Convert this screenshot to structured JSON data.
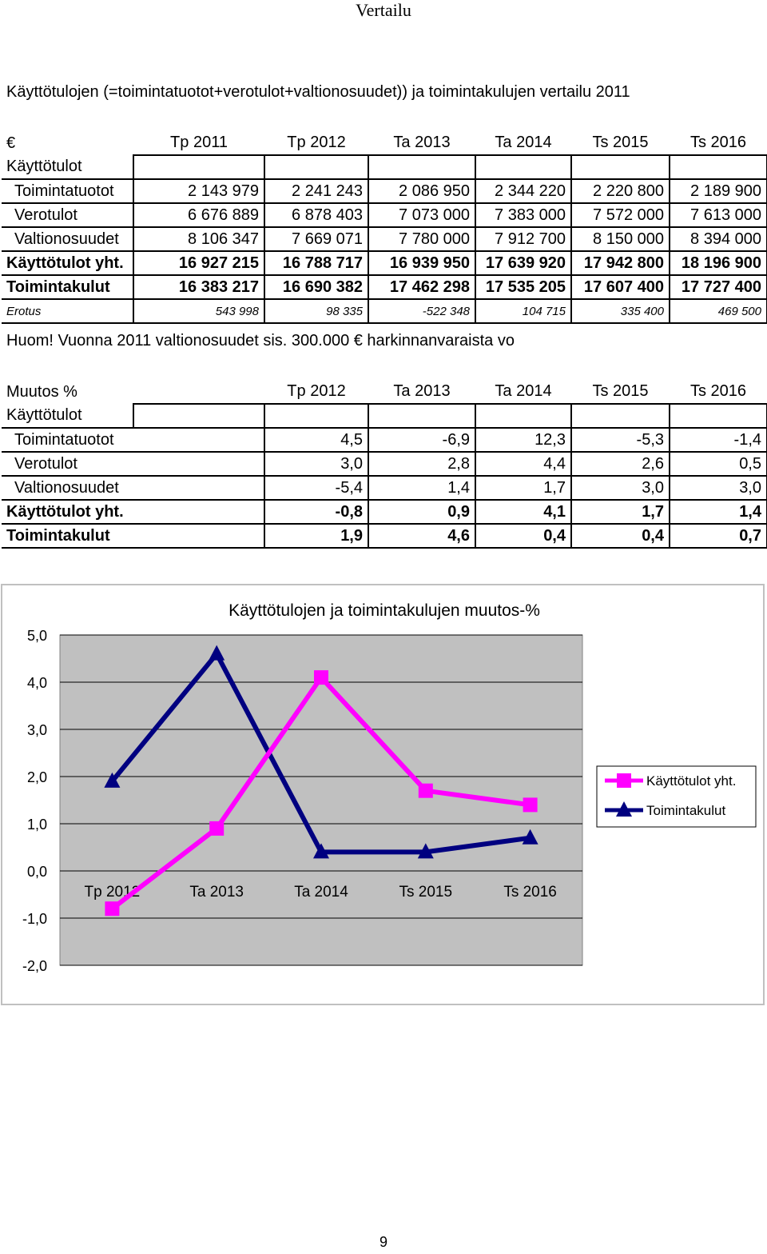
{
  "page_header": "Vertailu",
  "title": "Käyttötulojen (=toimintatuotot+verotulot+valtionosuudet)) ja toimintakulujen vertailu 2011",
  "table1": {
    "corner": "€",
    "columns": [
      "Tp 2011",
      "Tp 2012",
      "Ta 2013",
      "Ta 2014",
      "Ts 2015",
      "Ts 2016"
    ],
    "section_label": "Käyttötulot",
    "rows": [
      {
        "label": "Toimintatuotot",
        "values": [
          "2 143 979",
          "2 241 243",
          "2 086 950",
          "2 344 220",
          "2 220 800",
          "2 189 900"
        ]
      },
      {
        "label": "Verotulot",
        "values": [
          "6 676 889",
          "6 878 403",
          "7 073 000",
          "7 383 000",
          "7 572 000",
          "7 613 000"
        ]
      },
      {
        "label": "Valtionosuudet",
        "values": [
          "8 106 347",
          "7 669 071",
          "7 780 000",
          "7 912 700",
          "8 150 000",
          "8 394 000"
        ]
      },
      {
        "label": "Käyttötulot yht.",
        "values": [
          "16 927 215",
          "16 788 717",
          "16 939 950",
          "17 639 920",
          "17 942 800",
          "18 196 900"
        ]
      },
      {
        "label": "Toimintakulut",
        "values": [
          "16 383 217",
          "16 690 382",
          "17 462 298",
          "17 535 205",
          "17 607 400",
          "17 727 400"
        ]
      },
      {
        "label": "Erotus",
        "values": [
          "543 998",
          "98 335",
          "-522 348",
          "104 715",
          "335 400",
          "469 500"
        ]
      }
    ]
  },
  "note": "Huom! Vuonna 2011 valtionosuudet sis. 300.000 € harkinnanvaraista vo",
  "table2": {
    "corner": "Muutos %",
    "columns": [
      "Tp 2012",
      "Ta 2013",
      "Ta 2014",
      "Ts 2015",
      "Ts 2016"
    ],
    "section_label": "Käyttötulot",
    "rows": [
      {
        "label": "Toimintatuotot",
        "values": [
          "4,5",
          "-6,9",
          "12,3",
          "-5,3",
          "-1,4"
        ]
      },
      {
        "label": "Verotulot",
        "values": [
          "3,0",
          "2,8",
          "4,4",
          "2,6",
          "0,5"
        ]
      },
      {
        "label": "Valtionosuudet",
        "values": [
          "-5,4",
          "1,4",
          "1,7",
          "3,0",
          "3,0"
        ]
      },
      {
        "label": "Käyttötulot yht.",
        "values": [
          "-0,8",
          "0,9",
          "4,1",
          "1,7",
          "1,4"
        ]
      },
      {
        "label": "Toimintakulut",
        "values": [
          "1,9",
          "4,6",
          "0,4",
          "0,4",
          "0,7"
        ]
      }
    ]
  },
  "chart_data": {
    "type": "line",
    "title": "Käyttötulojen ja toimintakulujen muutos-%",
    "categories": [
      "Tp 2012",
      "Ta 2013",
      "Ta 2014",
      "Ts 2015",
      "Ts 2016"
    ],
    "series": [
      {
        "name": "Käyttötulot yht.",
        "values": [
          -0.8,
          0.9,
          4.1,
          1.7,
          1.4
        ],
        "color": "#ff00ff",
        "marker": "square"
      },
      {
        "name": "Toimintakulut",
        "values": [
          1.9,
          4.6,
          0.4,
          0.4,
          0.7
        ],
        "color": "#000080",
        "marker": "triangle"
      }
    ],
    "ylim": [
      -2,
      5
    ],
    "yticks": [
      "-2,0",
      "-1,0",
      "0,0",
      "1,0",
      "2,0",
      "3,0",
      "4,0",
      "5,0"
    ],
    "grid": true,
    "plot_background": "#c0c0c0",
    "legend": "right"
  },
  "page_number": "9"
}
